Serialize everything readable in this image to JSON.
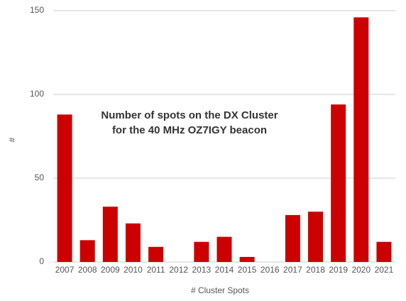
{
  "chart_data": {
    "type": "bar",
    "title": [
      "Number of spots on the DX Cluster",
      "for the 40 MHz OZ7IGY beacon"
    ],
    "x_label": "# Cluster Spots",
    "y_label": "#",
    "categories": [
      "2007",
      "2008",
      "2009",
      "2010",
      "2011",
      "2012",
      "2013",
      "2014",
      "2015",
      "2016",
      "2017",
      "2018",
      "2019",
      "2020",
      "2021"
    ],
    "values": [
      88,
      13,
      33,
      23,
      9,
      0,
      12,
      15,
      3,
      0,
      28,
      30,
      94,
      146,
      12
    ],
    "color": "#cc0000",
    "ylim": [
      0,
      150
    ],
    "yticks": [
      0,
      50,
      100,
      150
    ],
    "grid": true
  }
}
